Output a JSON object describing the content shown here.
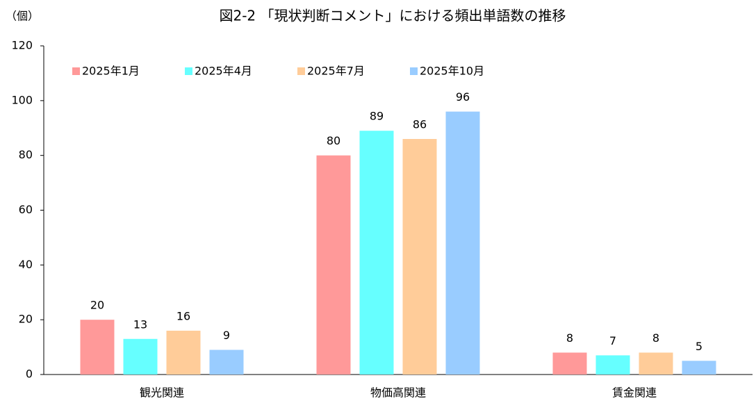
{
  "chart_data": {
    "type": "bar",
    "title": "図2-2 「現状判断コメント」における頻出単語数の推移",
    "y_label": "（個）",
    "categories": [
      "観光関連",
      "物価高関連",
      "賃金関連"
    ],
    "series": [
      {
        "name": "2025年1月",
        "color": "#ff9999",
        "values": [
          20,
          80,
          8
        ]
      },
      {
        "name": "2025年4月",
        "color": "#66ffff",
        "values": [
          13,
          89,
          7
        ]
      },
      {
        "name": "2025年7月",
        "color": "#ffcc99",
        "values": [
          16,
          86,
          8
        ]
      },
      {
        "name": "2025年10月",
        "color": "#99ccff",
        "values": [
          9,
          96,
          5
        ]
      }
    ],
    "ylim": [
      0,
      120
    ],
    "yticks": [
      0,
      20,
      40,
      60,
      80,
      100,
      120
    ],
    "grid": false
  }
}
